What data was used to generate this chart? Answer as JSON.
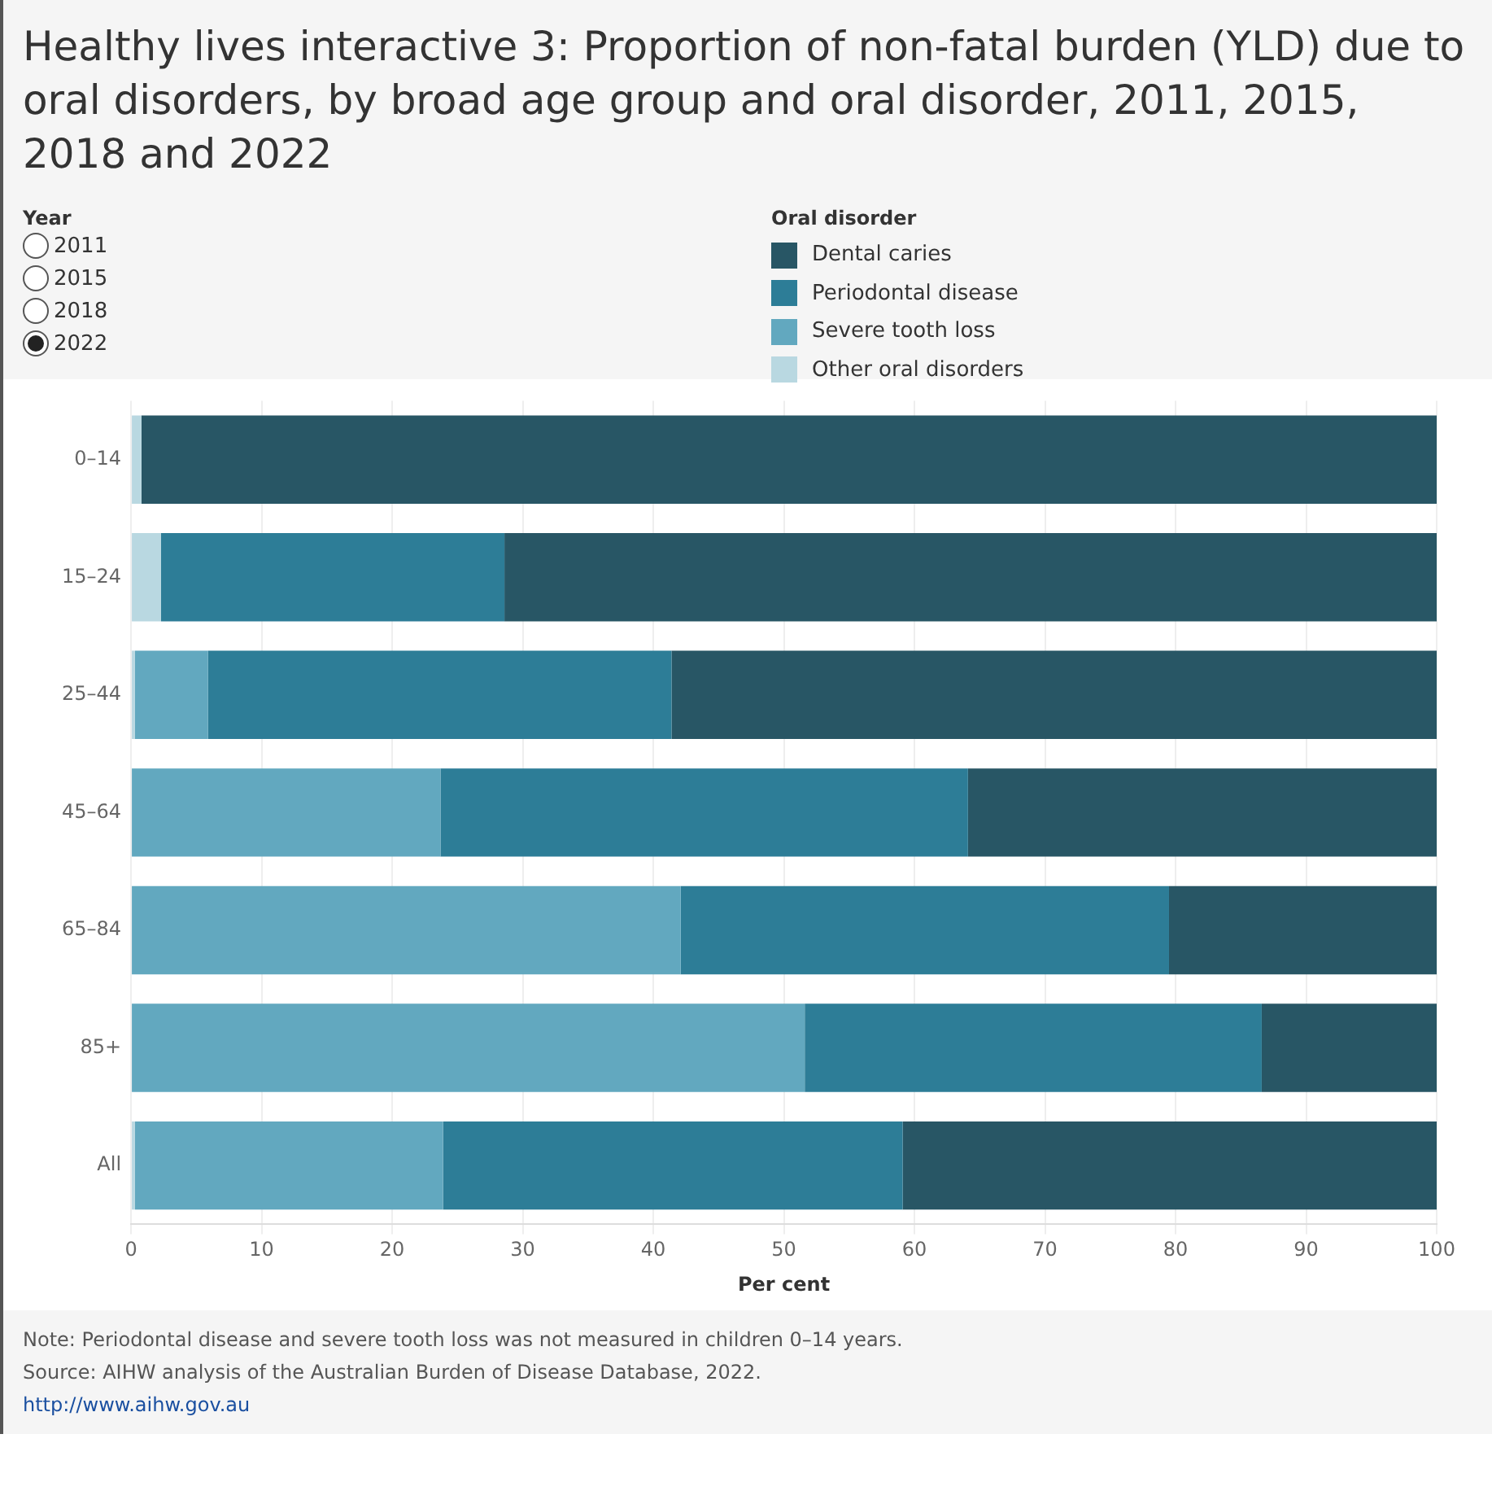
{
  "chart_data": {
    "type": "bar",
    "orientation": "horizontal",
    "stacked": true,
    "title": "Healthy lives interactive 3: Proportion of non-fatal burden (YLD) due to oral disorders, by broad age group and oral disorder, 2011, 2015, 2018 and 2022",
    "legend_title": "Oral disorder",
    "xlabel": "Per cent",
    "categories": [
      "0–14",
      "15–24",
      "25–44",
      "45–64",
      "65–84",
      "85+",
      "All"
    ],
    "series": [
      {
        "name": "Other oral disorders",
        "color": "#b9d8e1",
        "values": [
          0.8,
          2.3,
          0.3,
          0,
          0,
          0,
          0.3
        ]
      },
      {
        "name": "Severe tooth loss",
        "color": "#62a8bf",
        "values": [
          null,
          0,
          5.6,
          23.7,
          42.1,
          51.6,
          23.6
        ]
      },
      {
        "name": "Periodontal disease",
        "color": "#2d7d97",
        "values": [
          null,
          26.3,
          35.5,
          40.4,
          37.4,
          35,
          35.2
        ]
      },
      {
        "name": "Dental caries",
        "color": "#285665",
        "values": [
          99.2,
          71.4,
          58.6,
          35.9,
          20.5,
          13.4,
          40.9
        ]
      }
    ],
    "xlim": [
      0,
      100
    ],
    "xticks": [
      0,
      10,
      20,
      30,
      40,
      50,
      60,
      70,
      80,
      90,
      100
    ],
    "grid": "x",
    "legend": "top",
    "annotations": [
      "Year",
      "2011",
      "2015",
      "2018",
      "2022",
      "Note: Periodontal disease and severe tooth loss was not measured in children 0–14 years.",
      "Source: AIHW analysis of the Australian Burden of Disease Database, 2022.",
      "http://www.aihw.gov.au"
    ]
  }
}
